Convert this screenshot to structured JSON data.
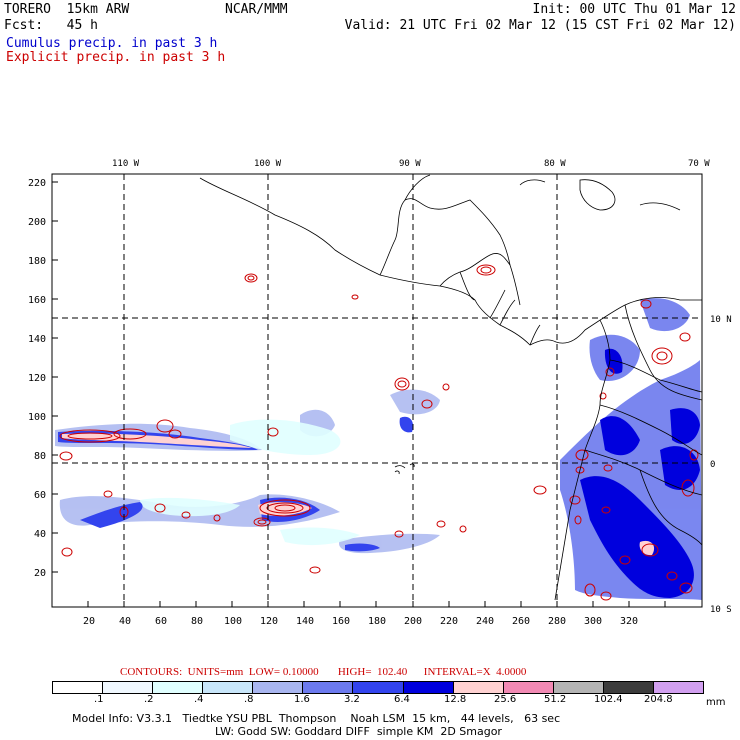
{
  "header": {
    "model": "TORERO  15km ARW",
    "center": "NCAR/MMM",
    "init": "Init: 00 UTC Thu 01 Mar 12",
    "fcst": "Fcst:   45 h",
    "valid": "Valid: 21 UTC Fri 02 Mar 12 (15 CST Fri 02 Mar 12)"
  },
  "fields": {
    "cumulus": "Cumulus precip. in past 3 h",
    "explicit": "Explicit precip. in past 3 h",
    "cumulus_color": "#0000cc",
    "explicit_color": "#cc0000"
  },
  "map": {
    "lon_labels": [
      "110 W",
      "100 W",
      "90 W",
      "80 W",
      "70 W"
    ],
    "lat_labels": [
      "10 N",
      "0",
      "10 S"
    ],
    "x_ticks": [
      "20",
      "40",
      "60",
      "80",
      "100",
      "120",
      "140",
      "160",
      "180",
      "200",
      "220",
      "240",
      "260",
      "280",
      "300",
      "320"
    ],
    "y_ticks": [
      "220",
      "200",
      "180",
      "160",
      "140",
      "120",
      "100",
      "80",
      "60",
      "40",
      "20"
    ]
  },
  "contours": {
    "text": "CONTOURS:  UNITS=mm  LOW= 0.10000       HIGH=  102.40      INTERVAL=X  4.0000"
  },
  "colorbar": {
    "colors": [
      "#ffffff",
      "#f0f8ff",
      "#e0ffff",
      "#c8e6fa",
      "#a9b6f0",
      "#6c7aee",
      "#3344ee",
      "#0000dd",
      "#ffd2d2",
      "#f28ab4",
      "#b4b4b4",
      "#3c3c3c",
      "#d2a0f0"
    ],
    "labels": [
      ".1",
      ".2",
      ".4",
      ".8",
      "1.6",
      "3.2",
      "6.4",
      "12.8",
      "25.6",
      "51.2",
      "102.4",
      "204.8"
    ],
    "unit": "mm"
  },
  "footer": {
    "line1": "Model Info: V3.3.1   Tiedtke YSU PBL  Thompson    Noah LSM  15 km,   44 levels,   63 sec",
    "line2": "LW: Godd SW: Goddard DIFF  simple KM  2D Smagor"
  }
}
